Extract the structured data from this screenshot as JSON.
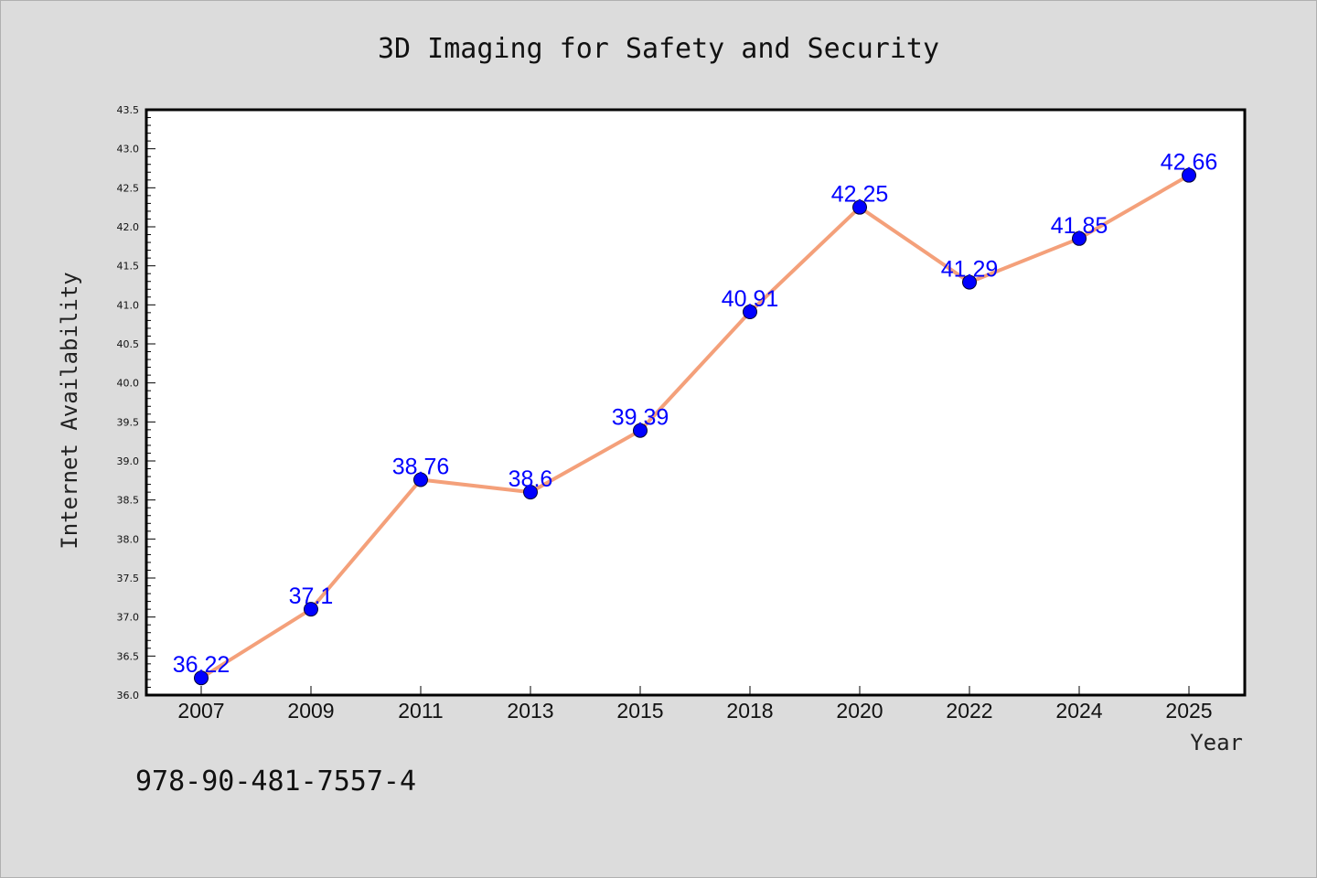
{
  "colors": {
    "page_background": "#dcdcdc",
    "plot_background": "#ffffff",
    "line": "#f4a07a",
    "marker": "#0000ff",
    "data_label": "#0000ff",
    "axis": "#000000"
  },
  "footnote": "978-90-481-7557-4",
  "chart_data": {
    "type": "line",
    "title": "3D Imaging for Safety and Security",
    "xlabel": "Year",
    "ylabel": "Internet Availability",
    "categories": [
      "2007",
      "2009",
      "2011",
      "2013",
      "2015",
      "2018",
      "2020",
      "2022",
      "2024",
      "2025"
    ],
    "series": [
      {
        "values": [
          36.22,
          37.1,
          38.76,
          38.6,
          39.39,
          40.91,
          42.25,
          41.29,
          41.85,
          42.66
        ],
        "labels": [
          "36.22",
          "37.1",
          "38.76",
          "38.6",
          "39.39",
          "40.91",
          "42.25",
          "41.29",
          "41.85",
          "42.66"
        ]
      }
    ],
    "ylim": [
      36.0,
      43.5
    ],
    "yticks": [
      "36.0",
      "36.5",
      "37.0",
      "37.5",
      "38.0",
      "38.5",
      "39.0",
      "39.5",
      "40.0",
      "40.5",
      "41.0",
      "41.5",
      "42.0",
      "42.5",
      "43.0",
      "43.5"
    ],
    "grid": false,
    "legend": "none",
    "marker": "circle"
  }
}
